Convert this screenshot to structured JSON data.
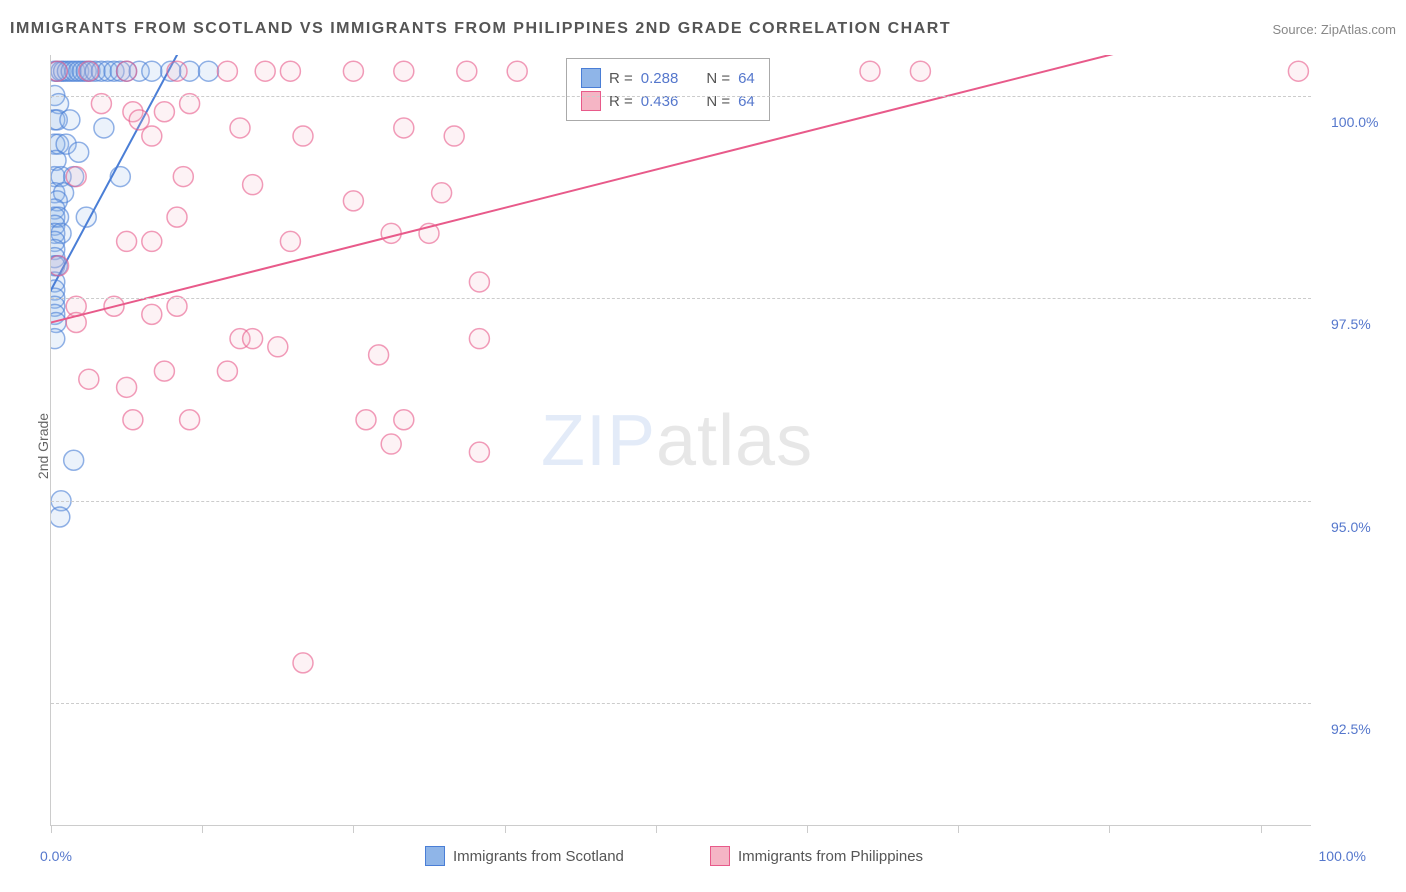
{
  "title": "IMMIGRANTS FROM SCOTLAND VS IMMIGRANTS FROM PHILIPPINES 2ND GRADE CORRELATION CHART",
  "source_label": "Source: ",
  "source_value": "ZipAtlas.com",
  "y_axis_label": "2nd Grade",
  "watermark_zip": "ZIP",
  "watermark_atlas": "atlas",
  "chart": {
    "type": "scatter",
    "xlim": [
      0,
      100
    ],
    "ylim": [
      91,
      100.5
    ],
    "x_ticks": [
      0,
      12,
      24,
      36,
      48,
      60,
      72,
      84,
      96
    ],
    "x_tick_labels_shown": {
      "0": "0.0%",
      "100": "100.0%"
    },
    "y_gridlines": [
      92.5,
      95.0,
      97.5,
      100.0
    ],
    "y_tick_labels": [
      "92.5%",
      "95.0%",
      "97.5%",
      "100.0%"
    ],
    "background_color": "#ffffff",
    "grid_color": "#cccccc",
    "grid_dash": "4,4",
    "marker_radius": 10,
    "marker_fill_opacity": 0.18,
    "marker_stroke_width": 1.5,
    "trend_line_width": 2
  },
  "series": [
    {
      "name": "Immigrants from Scotland",
      "color_fill": "#8fb5e8",
      "color_stroke": "#4a7ed6",
      "r_value": "0.288",
      "n_value": "64",
      "trend_line": {
        "x1": 0,
        "y1": 97.6,
        "x2": 10,
        "y2": 100.5
      },
      "points": [
        [
          0.3,
          100.3
        ],
        [
          0.5,
          100.3
        ],
        [
          0.8,
          100.3
        ],
        [
          1.0,
          100.3
        ],
        [
          1.3,
          100.3
        ],
        [
          1.6,
          100.3
        ],
        [
          1.9,
          100.3
        ],
        [
          2.2,
          100.3
        ],
        [
          2.5,
          100.3
        ],
        [
          2.8,
          100.3
        ],
        [
          3.1,
          100.3
        ],
        [
          3.5,
          100.3
        ],
        [
          4.0,
          100.3
        ],
        [
          4.5,
          100.3
        ],
        [
          5.0,
          100.3
        ],
        [
          5.5,
          100.3
        ],
        [
          6.0,
          100.3
        ],
        [
          7.0,
          100.3
        ],
        [
          8.0,
          100.3
        ],
        [
          9.5,
          100.3
        ],
        [
          11.0,
          100.3
        ],
        [
          12.5,
          100.3
        ],
        [
          0.3,
          100.0
        ],
        [
          0.6,
          99.9
        ],
        [
          0.3,
          99.7
        ],
        [
          0.5,
          99.7
        ],
        [
          1.5,
          99.7
        ],
        [
          4.2,
          99.6
        ],
        [
          0.3,
          99.4
        ],
        [
          0.6,
          99.4
        ],
        [
          1.2,
          99.4
        ],
        [
          2.2,
          99.3
        ],
        [
          0.4,
          99.2
        ],
        [
          0.3,
          99.0
        ],
        [
          0.8,
          99.0
        ],
        [
          1.8,
          99.0
        ],
        [
          5.5,
          99.0
        ],
        [
          0.3,
          98.8
        ],
        [
          1.0,
          98.8
        ],
        [
          0.5,
          98.7
        ],
        [
          0.3,
          98.6
        ],
        [
          0.3,
          98.5
        ],
        [
          0.6,
          98.5
        ],
        [
          0.3,
          98.4
        ],
        [
          0.3,
          98.3
        ],
        [
          0.8,
          98.3
        ],
        [
          2.8,
          98.5
        ],
        [
          0.3,
          98.2
        ],
        [
          0.3,
          98.1
        ],
        [
          0.3,
          98.0
        ],
        [
          0.3,
          97.9
        ],
        [
          0.5,
          97.9
        ],
        [
          0.3,
          97.7
        ],
        [
          0.3,
          97.6
        ],
        [
          0.3,
          97.5
        ],
        [
          0.3,
          97.4
        ],
        [
          0.3,
          97.3
        ],
        [
          0.4,
          97.2
        ],
        [
          0.3,
          97.0
        ],
        [
          1.8,
          95.5
        ],
        [
          0.8,
          95.0
        ],
        [
          0.7,
          94.8
        ]
      ]
    },
    {
      "name": "Immigrants from Philippines",
      "color_fill": "#f5b5c5",
      "color_stroke": "#e85a8a",
      "r_value": "0.436",
      "n_value": "64",
      "trend_line": {
        "x1": 0,
        "y1": 97.2,
        "x2": 84,
        "y2": 100.5
      },
      "points": [
        [
          0.5,
          100.3
        ],
        [
          3,
          100.3
        ],
        [
          6,
          100.3
        ],
        [
          10,
          100.3
        ],
        [
          14,
          100.3
        ],
        [
          17,
          100.3
        ],
        [
          19,
          100.3
        ],
        [
          24,
          100.3
        ],
        [
          28,
          100.3
        ],
        [
          33,
          100.3
        ],
        [
          37,
          100.3
        ],
        [
          42,
          100.3
        ],
        [
          47,
          100.3
        ],
        [
          56,
          100.3
        ],
        [
          65,
          100.3
        ],
        [
          69,
          100.3
        ],
        [
          99,
          100.3
        ],
        [
          4,
          99.9
        ],
        [
          6.5,
          99.8
        ],
        [
          7,
          99.7
        ],
        [
          9,
          99.8
        ],
        [
          11,
          99.9
        ],
        [
          15,
          99.6
        ],
        [
          8,
          99.5
        ],
        [
          20,
          99.5
        ],
        [
          28,
          99.6
        ],
        [
          32,
          99.5
        ],
        [
          2,
          99.0
        ],
        [
          10.5,
          99.0
        ],
        [
          16,
          98.9
        ],
        [
          24,
          98.7
        ],
        [
          31,
          98.8
        ],
        [
          10,
          98.5
        ],
        [
          27,
          98.3
        ],
        [
          30,
          98.3
        ],
        [
          6,
          98.2
        ],
        [
          8,
          98.2
        ],
        [
          19,
          98.2
        ],
        [
          0.6,
          97.9
        ],
        [
          34,
          97.7
        ],
        [
          2,
          97.4
        ],
        [
          5,
          97.4
        ],
        [
          8,
          97.3
        ],
        [
          10,
          97.4
        ],
        [
          2,
          97.2
        ],
        [
          15,
          97.0
        ],
        [
          16,
          97.0
        ],
        [
          18,
          96.9
        ],
        [
          26,
          96.8
        ],
        [
          34,
          97.0
        ],
        [
          3,
          96.5
        ],
        [
          6,
          96.4
        ],
        [
          9,
          96.6
        ],
        [
          14,
          96.6
        ],
        [
          6.5,
          96.0
        ],
        [
          11,
          96.0
        ],
        [
          25,
          96.0
        ],
        [
          28,
          96.0
        ],
        [
          27,
          95.7
        ],
        [
          34,
          95.6
        ],
        [
          20,
          93.0
        ]
      ]
    }
  ],
  "legend_stats": {
    "r_label": "R =",
    "n_label": "N ="
  },
  "bottom_legend": [
    {
      "label": "Immigrants from Scotland",
      "series_idx": 0
    },
    {
      "label": "Immigrants from Philippines",
      "series_idx": 1
    }
  ]
}
